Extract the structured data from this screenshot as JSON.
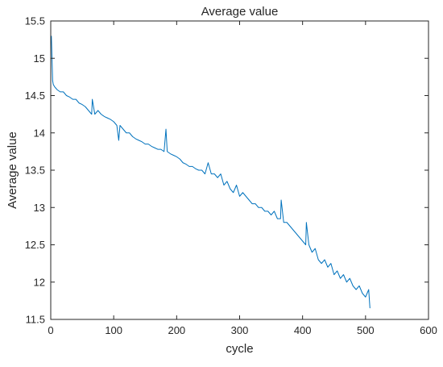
{
  "chart_data": {
    "type": "line",
    "title": "Average value",
    "xlabel": "cycle",
    "ylabel": "Average value",
    "xlim": [
      0,
      600
    ],
    "ylim": [
      11.5,
      15.5
    ],
    "xticks": [
      0,
      100,
      200,
      300,
      400,
      500,
      600
    ],
    "yticks": [
      11.5,
      12,
      12.5,
      13,
      13.5,
      14,
      14.5,
      15,
      15.5
    ],
    "grid": false,
    "series": [
      {
        "color": "#0072BD",
        "x": [
          1,
          2,
          3,
          4,
          6,
          8,
          10,
          15,
          20,
          25,
          30,
          35,
          40,
          45,
          50,
          55,
          60,
          65,
          66,
          70,
          75,
          80,
          85,
          90,
          95,
          100,
          105,
          108,
          110,
          115,
          120,
          125,
          130,
          135,
          140,
          145,
          150,
          155,
          160,
          165,
          170,
          175,
          180,
          183,
          185,
          190,
          195,
          200,
          205,
          210,
          215,
          220,
          225,
          230,
          235,
          240,
          245,
          250,
          255,
          260,
          265,
          270,
          275,
          280,
          285,
          290,
          295,
          300,
          305,
          310,
          315,
          320,
          325,
          330,
          335,
          340,
          345,
          350,
          355,
          360,
          365,
          366,
          370,
          375,
          380,
          385,
          390,
          395,
          400,
          405,
          406,
          410,
          415,
          420,
          425,
          430,
          435,
          440,
          445,
          450,
          455,
          460,
          465,
          470,
          475,
          480,
          485,
          490,
          495,
          500,
          505,
          507
        ],
        "y": [
          15.3,
          15.0,
          14.7,
          14.65,
          14.62,
          14.6,
          14.58,
          14.55,
          14.55,
          14.5,
          14.48,
          14.45,
          14.45,
          14.4,
          14.38,
          14.35,
          14.3,
          14.25,
          14.45,
          14.25,
          14.3,
          14.25,
          14.22,
          14.2,
          14.18,
          14.15,
          14.1,
          13.9,
          14.1,
          14.05,
          14.0,
          14.0,
          13.95,
          13.92,
          13.9,
          13.88,
          13.85,
          13.85,
          13.82,
          13.8,
          13.78,
          13.78,
          13.75,
          14.05,
          13.75,
          13.72,
          13.7,
          13.68,
          13.65,
          13.6,
          13.58,
          13.55,
          13.55,
          13.52,
          13.5,
          13.5,
          13.45,
          13.6,
          13.45,
          13.45,
          13.4,
          13.45,
          13.3,
          13.35,
          13.25,
          13.2,
          13.3,
          13.15,
          13.2,
          13.15,
          13.1,
          13.05,
          13.05,
          13.0,
          13.0,
          12.95,
          12.95,
          12.9,
          12.95,
          12.85,
          12.85,
          13.1,
          12.8,
          12.8,
          12.75,
          12.7,
          12.65,
          12.6,
          12.55,
          12.5,
          12.8,
          12.5,
          12.4,
          12.45,
          12.3,
          12.25,
          12.3,
          12.2,
          12.25,
          12.1,
          12.15,
          12.05,
          12.1,
          12.0,
          12.05,
          11.95,
          11.9,
          11.95,
          11.85,
          11.8,
          11.9,
          11.65
        ]
      }
    ]
  }
}
